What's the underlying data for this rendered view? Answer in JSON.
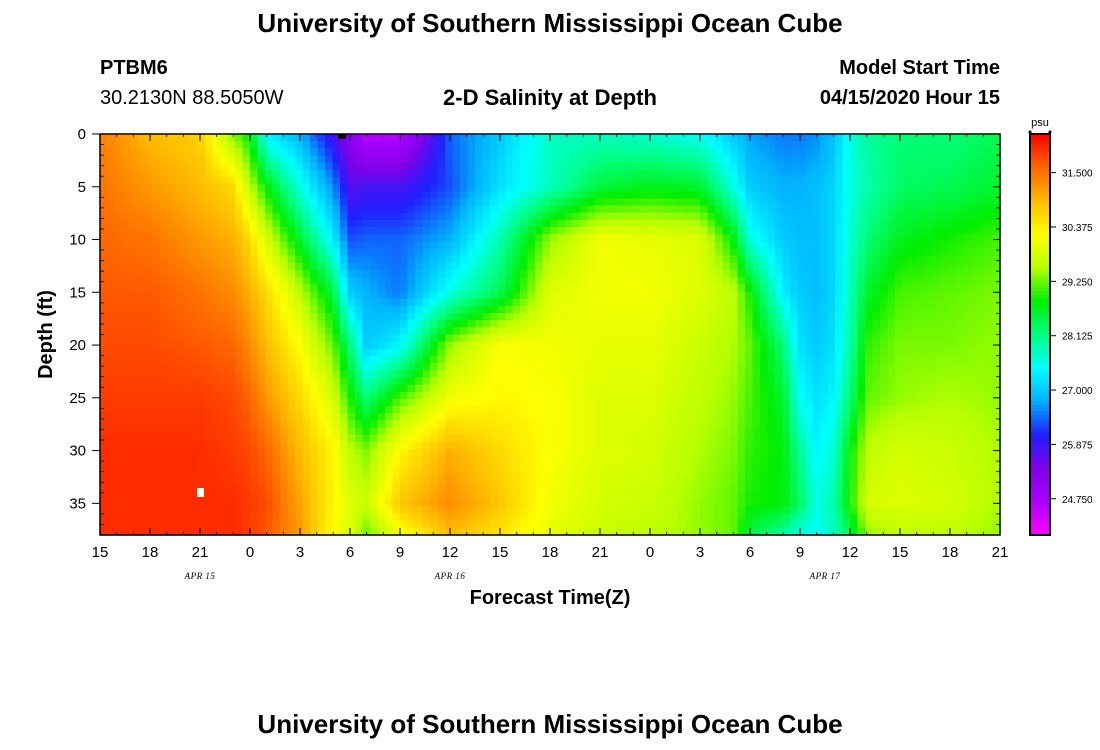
{
  "page": {
    "title": "University of Southern Mississippi Ocean Cube",
    "footer_title": "University of Southern Mississippi Ocean Cube"
  },
  "header": {
    "station": "PTBM6",
    "coords": "30.2130N 88.5050W",
    "plot_title": "2-D Salinity at Depth",
    "model_label": "Model Start Time",
    "model_time": "04/15/2020 Hour 15"
  },
  "chart_data": {
    "type": "heatmap",
    "title": "2-D Salinity at Depth",
    "xlabel": "Forecast Time(Z)",
    "ylabel": "Depth (ft)",
    "x_tick_labels": [
      "15",
      "18",
      "21",
      "0",
      "3",
      "6",
      "9",
      "12",
      "15",
      "18",
      "21",
      "0",
      "3",
      "6",
      "9",
      "12",
      "15",
      "18",
      "21"
    ],
    "x_range_hours": [
      0,
      54
    ],
    "x_tick_step_hours": 3,
    "date_labels": [
      {
        "text": "APR 15",
        "hour": 6
      },
      {
        "text": "APR 16",
        "hour": 21
      },
      {
        "text": "APR 17",
        "hour": 43.5
      }
    ],
    "y_tick_labels": [
      "0",
      "5",
      "10",
      "15",
      "20",
      "25",
      "30",
      "35"
    ],
    "y_range_ft": [
      0,
      38
    ],
    "y_tick_step_ft": 5,
    "colorbar": {
      "unit": "psu",
      "range": [
        24.0,
        32.3
      ],
      "tick_labels": [
        "31.500",
        "30.375",
        "29.250",
        "28.125",
        "27.000",
        "25.875",
        "24.750"
      ],
      "tick_values": [
        31.5,
        30.375,
        29.25,
        28.125,
        27.0,
        25.875,
        24.75
      ],
      "colors": [
        "#ff00ff",
        "#a800ff",
        "#8000e8",
        "#2020ff",
        "#00b0ff",
        "#00ffff",
        "#00ff80",
        "#00ee00",
        "#b8ff00",
        "#ffff00",
        "#ffbb00",
        "#ff6600",
        "#ff0000"
      ]
    },
    "depth_levels_ft": [
      0,
      5,
      10,
      15,
      20,
      25,
      30,
      35,
      38
    ],
    "time_hours": [
      0,
      3,
      6,
      8,
      9,
      10,
      12,
      14,
      15,
      16,
      18,
      21,
      24,
      27,
      30,
      33,
      36,
      38,
      39,
      41,
      42,
      43,
      44,
      45,
      46,
      48,
      51,
      54
    ],
    "salinity_psu": [
      [
        31.4,
        31.5,
        31.6,
        31.7,
        31.8,
        31.9,
        32.0,
        32.0,
        32.0
      ],
      [
        30.9,
        31.2,
        31.5,
        31.7,
        31.8,
        31.9,
        32.0,
        32.0,
        32.0
      ],
      [
        30.7,
        30.9,
        31.2,
        31.5,
        31.7,
        31.9,
        32.0,
        32.0,
        32.0
      ],
      [
        29.3,
        30.6,
        31.0,
        31.3,
        31.6,
        31.8,
        31.9,
        32.0,
        32.0
      ],
      [
        28.8,
        29.6,
        30.6,
        31.0,
        31.3,
        31.6,
        31.8,
        31.9,
        31.9
      ],
      [
        27.3,
        28.8,
        29.8,
        30.6,
        30.9,
        31.2,
        31.6,
        31.8,
        31.7
      ],
      [
        26.8,
        27.6,
        28.6,
        29.6,
        30.2,
        30.6,
        30.9,
        31.1,
        31.2
      ],
      [
        25.8,
        26.6,
        27.3,
        28.5,
        29.2,
        29.8,
        30.3,
        30.3,
        30.2
      ],
      [
        25.1,
        25.7,
        26.3,
        27.0,
        28.2,
        28.9,
        29.6,
        29.9,
        29.9
      ],
      [
        24.5,
        25.8,
        26.4,
        26.8,
        27.0,
        28.2,
        29.3,
        29.7,
        29.2
      ],
      [
        24.5,
        25.8,
        26.4,
        26.5,
        27.4,
        29.1,
        30.3,
        30.8,
        30.1
      ],
      [
        26.4,
        26.3,
        26.8,
        27.6,
        29.4,
        30.1,
        31.0,
        31.3,
        30.9
      ],
      [
        27.0,
        27.2,
        27.9,
        28.4,
        30.2,
        30.3,
        30.6,
        30.8,
        30.5
      ],
      [
        27.8,
        27.8,
        29.4,
        29.9,
        30.1,
        30.2,
        30.2,
        30.1,
        30.0
      ],
      [
        27.8,
        28.5,
        30.1,
        30.1,
        30.0,
        29.9,
        29.9,
        29.8,
        29.7
      ],
      [
        27.7,
        28.7,
        30.0,
        30.1,
        30.0,
        29.9,
        29.8,
        29.7,
        29.6
      ],
      [
        27.5,
        28.6,
        29.9,
        29.9,
        29.7,
        29.6,
        29.5,
        29.4,
        29.4
      ],
      [
        27.0,
        27.6,
        28.8,
        29.6,
        29.5,
        29.4,
        29.3,
        29.2,
        29.2
      ],
      [
        26.7,
        27.0,
        27.6,
        28.9,
        29.2,
        29.1,
        29.0,
        28.9,
        28.5
      ],
      [
        26.5,
        26.8,
        27.0,
        27.3,
        28.2,
        28.6,
        28.8,
        28.8,
        28.0
      ],
      [
        26.5,
        26.8,
        26.9,
        27.0,
        27.2,
        27.5,
        28.0,
        28.3,
        27.6
      ],
      [
        26.6,
        26.9,
        26.9,
        26.9,
        27.0,
        27.2,
        27.4,
        27.6,
        27.5
      ],
      [
        26.9,
        27.1,
        27.1,
        27.1,
        27.2,
        27.4,
        27.7,
        27.9,
        27.8
      ],
      [
        27.6,
        27.6,
        27.7,
        27.8,
        27.9,
        28.2,
        28.8,
        28.9,
        28.4
      ],
      [
        28.0,
        27.9,
        28.2,
        28.6,
        29.0,
        29.2,
        29.6,
        29.8,
        29.4
      ],
      [
        28.2,
        28.3,
        28.7,
        29.1,
        29.3,
        29.4,
        29.8,
        29.9,
        29.6
      ],
      [
        28.2,
        28.4,
        28.9,
        29.2,
        29.3,
        29.5,
        29.7,
        29.8,
        29.6
      ],
      [
        28.4,
        28.6,
        29.1,
        29.3,
        29.4,
        29.4,
        29.5,
        29.5,
        29.4
      ]
    ]
  }
}
